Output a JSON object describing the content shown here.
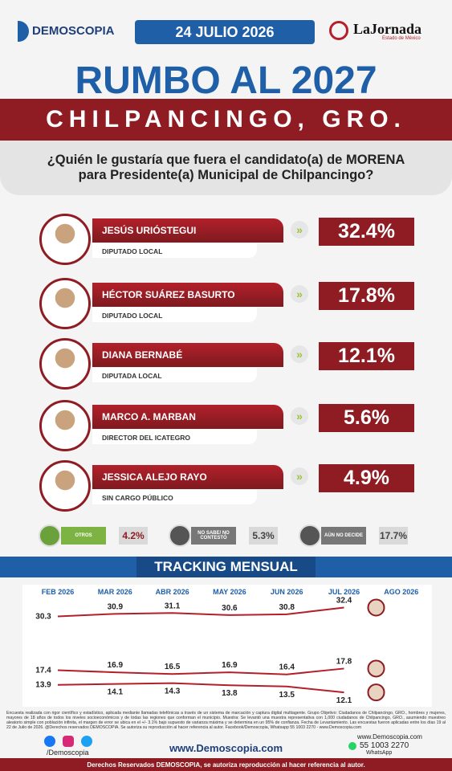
{
  "header": {
    "brand": "DEMOSCOPIA",
    "date": "24 JULIO 2026",
    "partner": "LaJornada",
    "partner_sub": "Estado de México"
  },
  "title": "RUMBO AL 2027",
  "subtitle": "CHILPANCINGO, GRO.",
  "question": "¿Quién le gustaría que fuera el candidato(a) de MORENA para Presidente(a) Municipal de Chilpancingo?",
  "candidates": [
    {
      "name": "JESÚS URIÓSTEGUI",
      "role": "DIPUTADO LOCAL",
      "value": "32.4%"
    },
    {
      "name": "HÉCTOR SUÁREZ BASURTO",
      "role": "DIPUTADO LOCAL",
      "value": "17.8%"
    },
    {
      "name": "DIANA BERNABÉ",
      "role": "DIPUTADA LOCAL",
      "value": "12.1%"
    },
    {
      "name": "MARCO A. MARBAN",
      "role": "DIRECTOR DEL ICATEGRO",
      "value": "5.6%"
    },
    {
      "name": "JESSICA ALEJO RAYO",
      "role": "SIN CARGO PÚBLICO",
      "value": "4.9%"
    }
  ],
  "others": [
    {
      "label": "OTROS",
      "value": "4.2%"
    },
    {
      "label": "NO SABE/ NO CONTESTÓ",
      "value": "5.3%"
    },
    {
      "label": "AÚN NO DECIDE",
      "value": "17.7%"
    }
  ],
  "tracking_title": "TRACKING MENSUAL",
  "chart_data": {
    "type": "line",
    "categories": [
      "FEB 2026",
      "MAR 2026",
      "ABR 2026",
      "MAY 2026",
      "JUN 2026",
      "JUL 2026",
      "AGO 2026"
    ],
    "series": [
      {
        "color": "#b3202a",
        "values": [
          30.3,
          30.9,
          31.1,
          30.6,
          30.8,
          32.4,
          null
        ]
      },
      {
        "color": "#b3202a",
        "values": [
          17.4,
          16.9,
          16.5,
          16.9,
          16.4,
          17.8,
          null
        ]
      },
      {
        "color": "#b3202a",
        "values": [
          13.9,
          14.1,
          14.3,
          13.8,
          13.5,
          12.1,
          null
        ]
      }
    ]
  },
  "footer": {
    "note": "Encuesta realizada con rigor científico y estadístico, aplicada mediante llamadas telefónicas a través de un sistema de marcación y captura digital multiagente. Grupo Objetivo: Ciudadanos de Chilpancingo, GRO., hombres y mujeres, mayores de 18 años de todos los niveles socioeconómicos y de todas las regiones que conforman el municipio. Muestra: Se levantó una muestra representativa con 1,000 ciudadanos de Chilpancingo, GRO., asumiendo muestreo aleatorio simple con población infinita, el margen de error se ubica en el +/- 3.1% bajo supuesto de varianza máxima y se determina en un 95% de confianza. Fecha de Levantamiento. Las encuestas fueron aplicadas entre los días 19 al 22 de Julio de 2026. @Derechos reservados DEMOSCOPIA. Se autoriza su reproducción al hacer referencia al autor. Facebook/Demoscopia, Whatsapp 55 1003 2270 - www.Demoscopia.com",
    "social": "/Demoscopia",
    "website": "www.Demoscopia.com",
    "website_right": "www.Demoscopia.com",
    "phone": "55 1003 2270",
    "whatsapp": "WhatsApp",
    "rights": "Derechos Reservados DEMOSCOPIA, se autoriza reproducción al hacer referencia al autor."
  }
}
